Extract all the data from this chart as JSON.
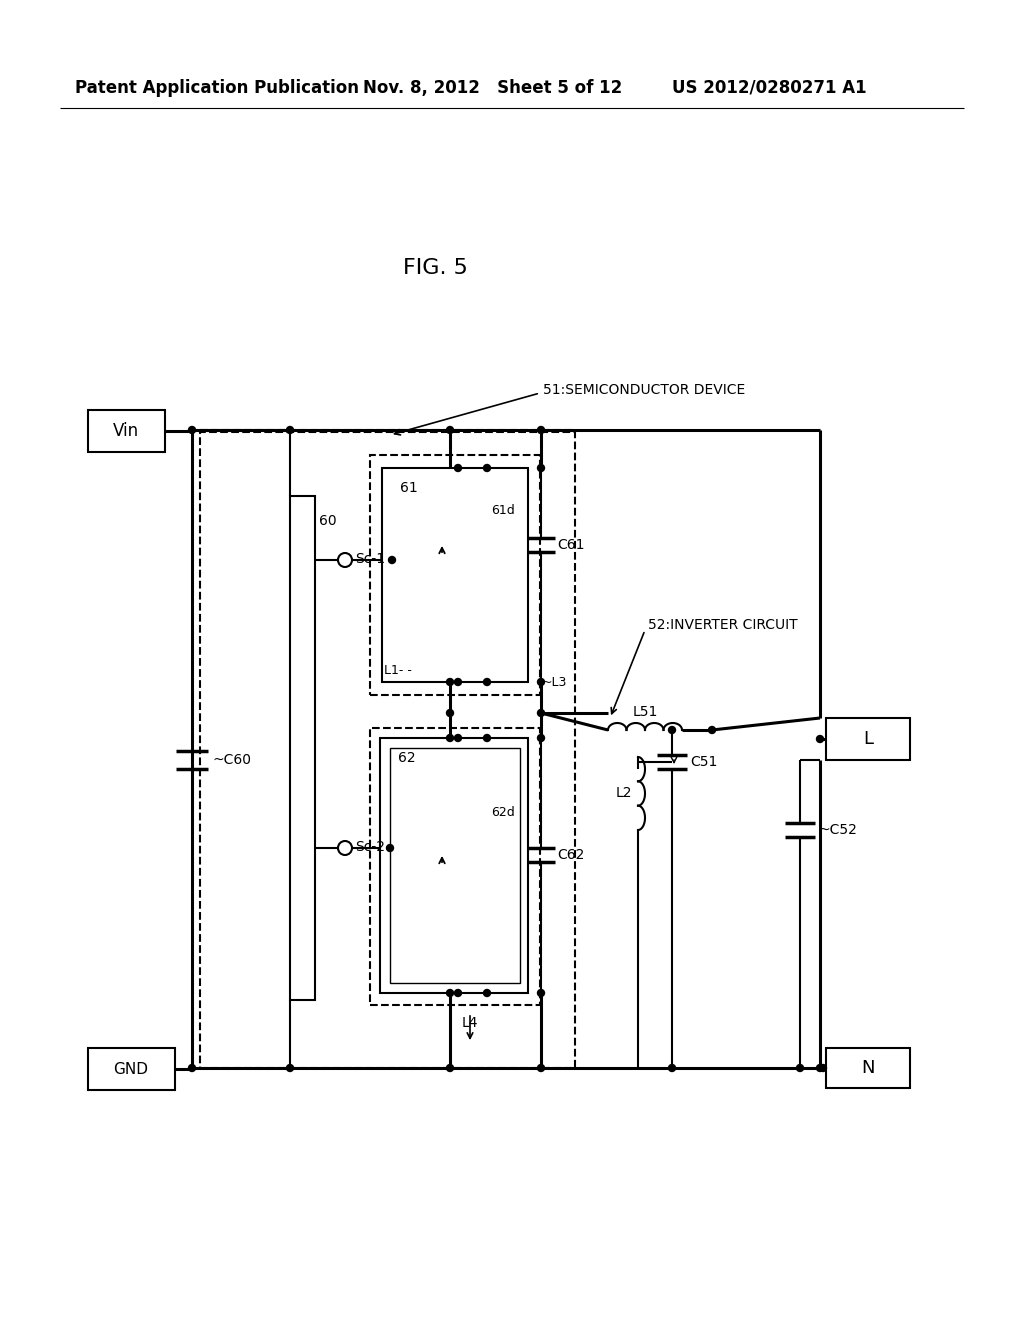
{
  "bg_color": "#ffffff",
  "fig_title": "FIG. 5",
  "header_left": "Patent Application Publication",
  "header_mid": "Nov. 8, 2012   Sheet 5 of 12",
  "header_right": "US 2012/0280271 A1",
  "label_51": "51:SEMICONDUCTOR DEVICE",
  "label_52": "52:INVERTER CIRCUIT",
  "label_vin": "Vin",
  "label_gnd": "GND",
  "label_L": "L",
  "label_N": "N",
  "label_Sc1": "Sc-1",
  "label_Sc2": "Sc-2",
  "label_60": "60",
  "label_61": "61",
  "label_62": "62",
  "label_61d": "61d",
  "label_62d": "62d",
  "label_C60": "C60",
  "label_C61": "C61",
  "label_C62": "C62",
  "label_C51": "C51",
  "label_C52": "C52",
  "label_L1": "L1",
  "label_L2": "L2",
  "label_L3": "~L3",
  "label_L4": "L4",
  "label_L51": "L51"
}
